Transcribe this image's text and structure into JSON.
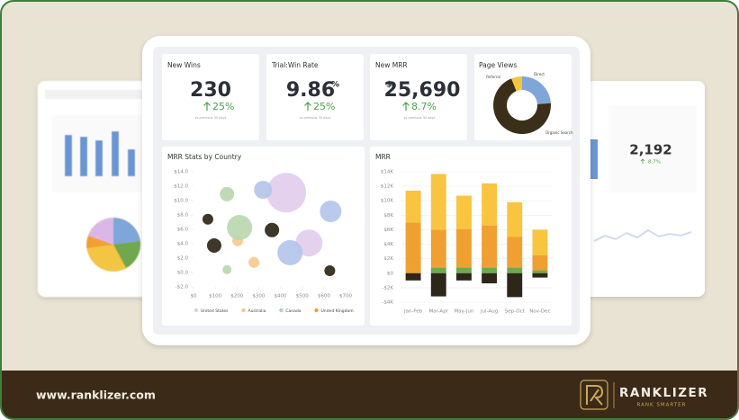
{
  "kpis": [
    {
      "title": "New Wins",
      "value": "230",
      "change": "25%",
      "note": "vs previous 30 days"
    },
    {
      "title": "Trial:Win Rate",
      "value": "9.86",
      "suffix": "%",
      "change": "25%",
      "note": "vs previous 30 days"
    },
    {
      "title": "New MRR",
      "prefix": "$",
      "value": "25,690",
      "change": "8.7%",
      "note": "vs previous 30 days"
    }
  ],
  "side_panel": {
    "value": "2,192",
    "change": "8.7%"
  },
  "footer": {
    "url": "www.ranklizer.com",
    "brand": "RANKLIZER",
    "tagline": "RANK SMARTER"
  },
  "chart_data": [
    {
      "type": "pie",
      "title": "Page Views",
      "donut": true,
      "categories": [
        "Referral",
        "Direct",
        "Organic Search"
      ],
      "values": [
        6,
        24,
        70
      ],
      "colors": [
        "#f4c542",
        "#7ea6d8",
        "#3b2f1a"
      ]
    },
    {
      "type": "scatter",
      "title": "MRR Stats by Country",
      "xlim": [
        0,
        700
      ],
      "xticks": [
        {
          "value": 0,
          "label": "$0"
        },
        {
          "value": 100,
          "label": "$100"
        },
        {
          "value": 200,
          "label": "$200"
        },
        {
          "value": 300,
          "label": "$300"
        },
        {
          "value": 400,
          "label": "$400"
        },
        {
          "value": 500,
          "label": "$500"
        },
        {
          "value": 600,
          "label": "$600"
        },
        {
          "value": 700,
          "label": "$700"
        }
      ],
      "ylim": [
        -2,
        14
      ],
      "yticks": [
        {
          "value": -2,
          "label": "-$2.0"
        },
        {
          "value": 0,
          "label": "$0.0"
        },
        {
          "value": 2,
          "label": "$2.0"
        },
        {
          "value": 4,
          "label": "$4.0"
        },
        {
          "value": 6,
          "label": "$6.0"
        },
        {
          "value": 8,
          "label": "$8.0"
        },
        {
          "value": 10,
          "label": "$10.0"
        },
        {
          "value": 12,
          "label": "$12.0"
        },
        {
          "value": 14,
          "label": "$14.0"
        }
      ],
      "series": [
        {
          "name": "United States",
          "color": "#e2cdec",
          "x": [
            427,
            531
          ],
          "y": [
            11.1,
            4.1
          ],
          "size": [
            22,
            15
          ]
        },
        {
          "name": "Australia",
          "color": "#f8c98e",
          "x": [
            278,
            203
          ],
          "y": [
            1.4,
            4.4
          ],
          "size": [
            6,
            6
          ]
        },
        {
          "name": "Canada",
          "color": "#b3c6ea",
          "x": [
            320,
            631,
            444
          ],
          "y": [
            11.5,
            8.5,
            2.75
          ],
          "size": [
            10,
            12,
            14
          ]
        },
        {
          "name": "United Kingdom",
          "color": "#f0a030",
          "x": [],
          "y": [],
          "size": []
        },
        {
          "color": "#b9d8b0",
          "x": [
            154,
            212,
            154
          ],
          "y": [
            10.9,
            6.25,
            0.4
          ],
          "size": [
            8,
            14,
            5
          ]
        },
        {
          "color": "#2e2618",
          "x": [
            66,
            361,
            95,
            627
          ],
          "y": [
            7.4,
            5.9,
            3.75,
            0.25
          ],
          "size": [
            6,
            8,
            8,
            6
          ]
        }
      ]
    },
    {
      "type": "bar",
      "stacked": true,
      "title": "MRR",
      "categories": [
        "Jan-Feb",
        "Mar-Apr",
        "May-Jun",
        "Jul-Aug",
        "Sep-Oct",
        "Nov-Dec"
      ],
      "ylim": [
        -4,
        14
      ],
      "yticks": [
        {
          "value": -4,
          "label": "-$4K"
        },
        {
          "value": -2,
          "label": "-$2K"
        },
        {
          "value": 0,
          "label": "$0"
        },
        {
          "value": 2,
          "label": "$2K"
        },
        {
          "value": 4,
          "label": "$4K"
        },
        {
          "value": 6,
          "label": "$6K"
        },
        {
          "value": 8,
          "label": "$8K"
        },
        {
          "value": 10,
          "label": "$10K"
        },
        {
          "value": 12,
          "label": "$12K"
        },
        {
          "value": 14,
          "label": "$14K"
        }
      ],
      "grid": true,
      "series": [
        {
          "color": "#6fa84f",
          "values": [
            0,
            0.8,
            0.8,
            0.8,
            0.8,
            0.4
          ]
        },
        {
          "color": "#f0a030",
          "values": [
            7.0,
            5.2,
            5.3,
            5.8,
            4.2,
            2.1
          ]
        },
        {
          "color": "#f9c440",
          "values": [
            4.4,
            7.7,
            4.6,
            5.8,
            4.8,
            3.5
          ]
        },
        {
          "color": "#2e2618",
          "values": [
            -1.0,
            -3.2,
            -1.0,
            -1.4,
            -3.3,
            -0.6
          ]
        }
      ]
    }
  ]
}
